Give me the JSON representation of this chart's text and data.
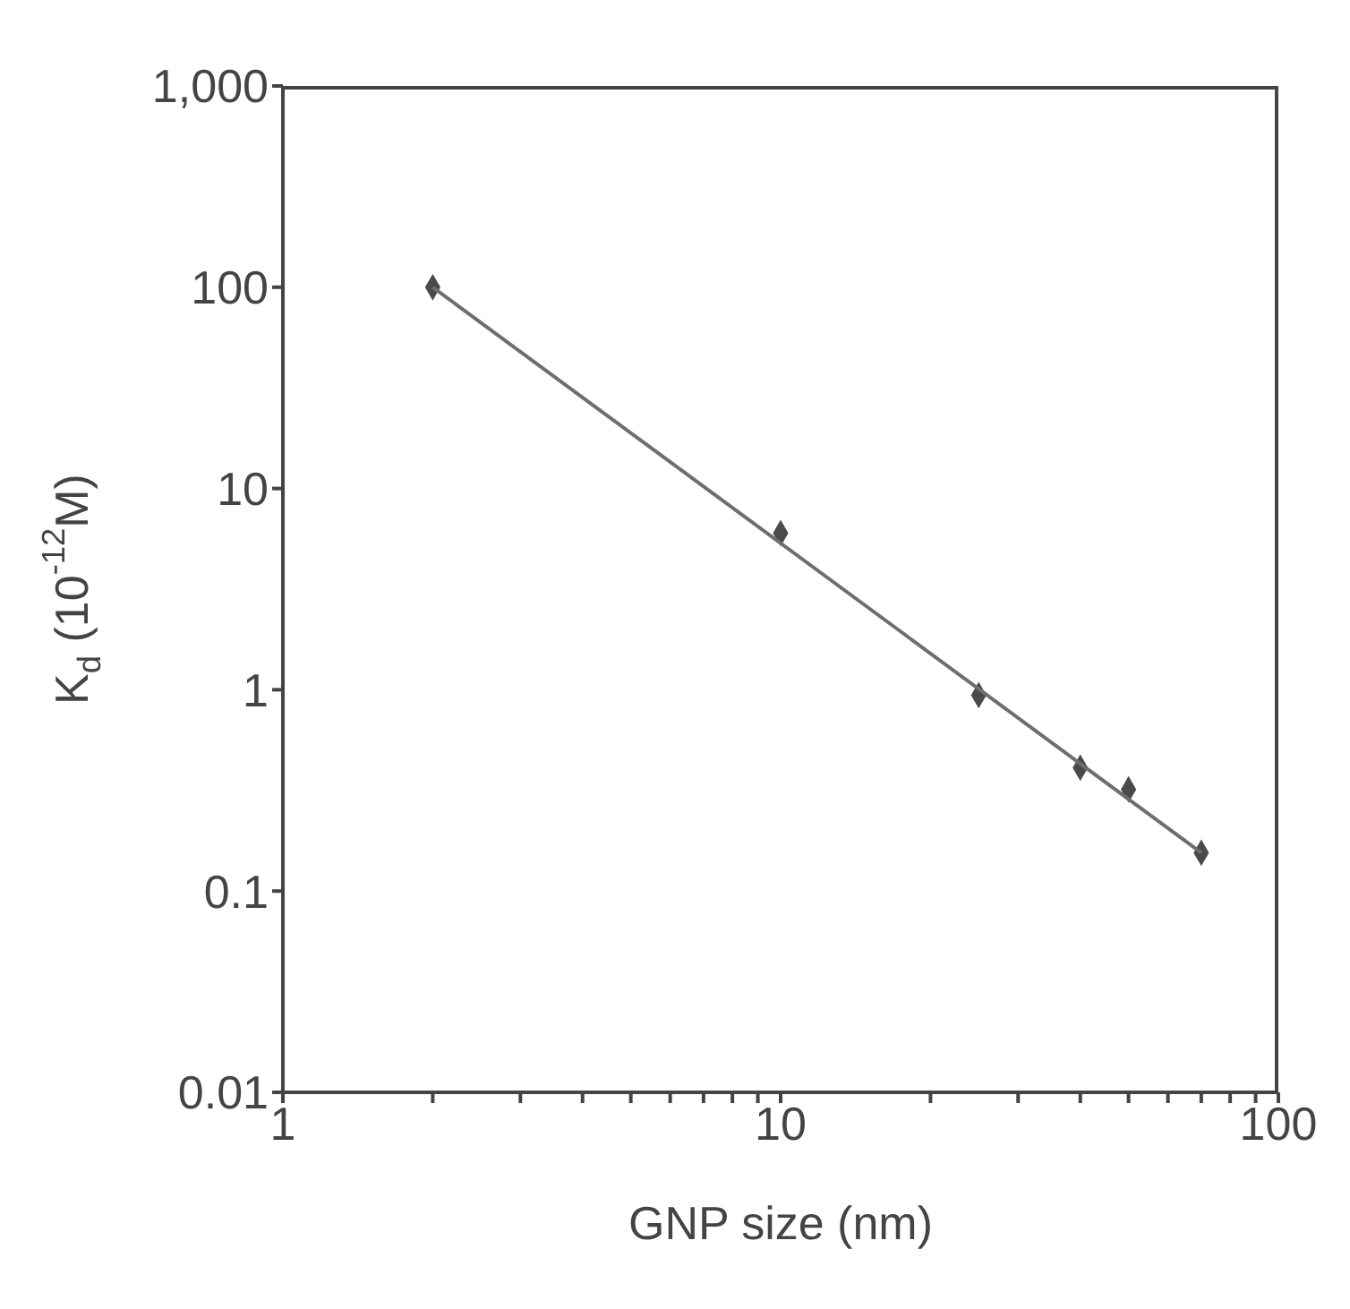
{
  "chart_data": {
    "type": "scatter",
    "xlabel": "GNP size (nm)",
    "ylabel": "K$_{d}$ (10$^{-12}$M)",
    "log": "xy",
    "marker": "diamond",
    "xlim": [
      1,
      100
    ],
    "ylim": [
      0.01,
      1000
    ],
    "xticks": [
      1,
      {
        "value": 2,
        "label": null
      },
      {
        "value": 3,
        "label": null
      },
      {
        "value": 4,
        "label": null
      },
      {
        "value": 5,
        "label": null
      },
      {
        "value": 6,
        "label": null
      },
      {
        "value": 7,
        "label": null
      },
      {
        "value": 8,
        "label": null
      },
      {
        "value": 9,
        "label": null
      },
      10,
      {
        "value": 20,
        "label": null
      },
      {
        "value": 30,
        "label": null
      },
      {
        "value": 40,
        "label": null
      },
      {
        "value": 50,
        "label": null
      },
      {
        "value": 60,
        "label": null
      },
      {
        "value": 70,
        "label": null
      },
      {
        "value": 80,
        "label": null
      },
      {
        "value": 90,
        "label": null
      },
      100
    ],
    "yticks": [
      0.01,
      0.1,
      1,
      10,
      100,
      {
        "value": 1000,
        "label": "1,000"
      }
    ],
    "series": [
      {
        "color": "#4a4a4a",
        "x": [
          2,
          10,
          25,
          40,
          50,
          70
        ],
        "values": [
          100,
          6,
          0.94,
          0.41,
          0.32,
          0.155
        ]
      },
      {
        "type": "line",
        "marker": "none",
        "color": "#6e6e6e",
        "line_style": "solid",
        "x": [
          2,
          70
        ],
        "values": [
          100,
          0.155
        ]
      }
    ]
  }
}
